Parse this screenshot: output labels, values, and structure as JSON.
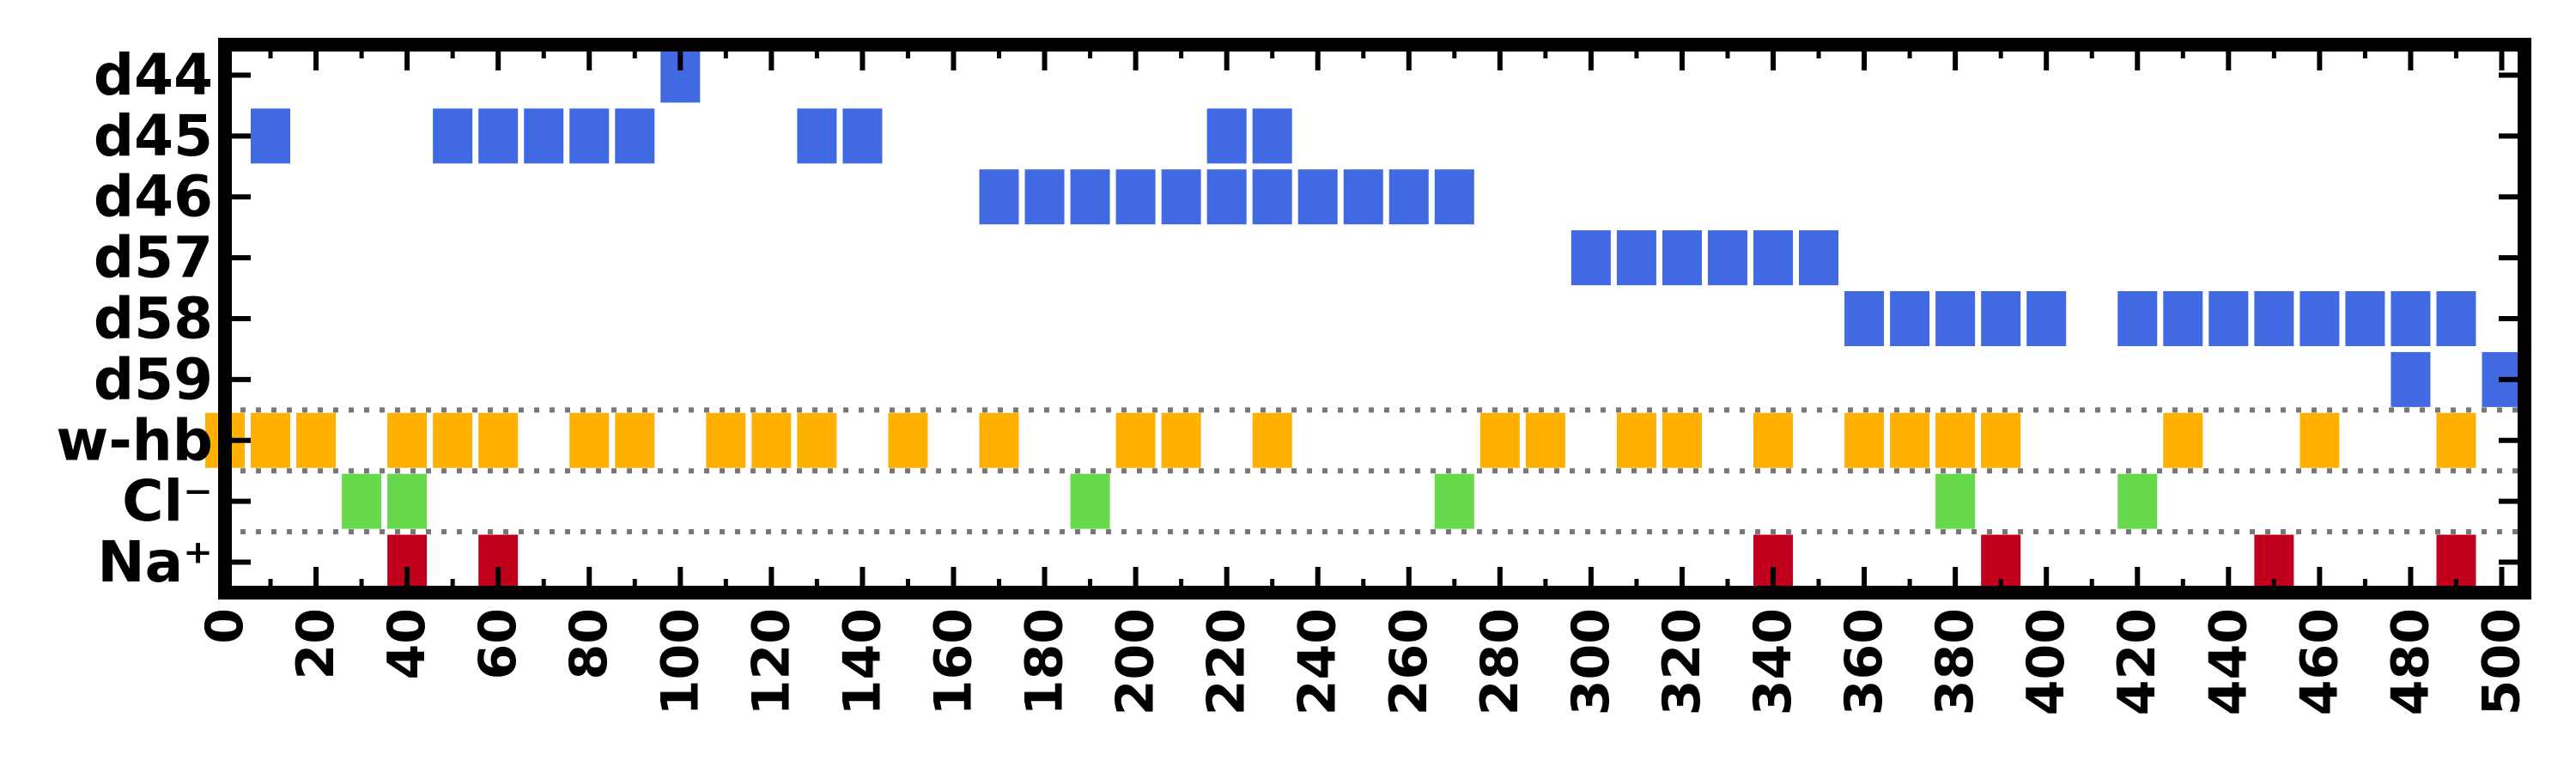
{
  "chart_data": {
    "type": "heatmap",
    "title": "",
    "xlabel": "",
    "ylabel": "",
    "xlim": [
      0,
      505
    ],
    "x_ticks": [
      0,
      20,
      40,
      60,
      80,
      100,
      120,
      140,
      160,
      180,
      200,
      220,
      240,
      260,
      280,
      300,
      320,
      340,
      360,
      380,
      400,
      420,
      440,
      460,
      480,
      500
    ],
    "x_minor_ticks": [
      10,
      30,
      50,
      70,
      90,
      110,
      130,
      150,
      170,
      190,
      210,
      230,
      250,
      270,
      290,
      310,
      330,
      350,
      370,
      390,
      410,
      430,
      450,
      470,
      490
    ],
    "rows": [
      "d44",
      "d45",
      "d46",
      "d57",
      "d58",
      "d59",
      "w-hb",
      "Cl⁻",
      "Na⁺"
    ],
    "separators_after_row": [
      "d59",
      "w-hb",
      "Cl⁻"
    ],
    "series": [
      {
        "row": "d44",
        "color": "#4169e1",
        "x": [
          100
        ]
      },
      {
        "row": "d45",
        "color": "#4169e1",
        "x": [
          10,
          50,
          60,
          70,
          80,
          90,
          130,
          140,
          220,
          230
        ]
      },
      {
        "row": "d46",
        "color": "#4169e1",
        "x": [
          170,
          180,
          190,
          200,
          210,
          220,
          230,
          240,
          250,
          260,
          270
        ]
      },
      {
        "row": "d57",
        "color": "#4169e1",
        "x": [
          300,
          310,
          320,
          330,
          340,
          350
        ]
      },
      {
        "row": "d58",
        "color": "#4169e1",
        "x": [
          360,
          370,
          380,
          390,
          400,
          420,
          430,
          440,
          450,
          460,
          470,
          480,
          490
        ]
      },
      {
        "row": "d59",
        "color": "#4169e1",
        "x": [
          480,
          500
        ]
      },
      {
        "row": "w-hb",
        "color": "#ffb000",
        "x": [
          0,
          10,
          20,
          40,
          50,
          60,
          80,
          90,
          110,
          120,
          130,
          150,
          170,
          200,
          210,
          230,
          280,
          290,
          310,
          320,
          340,
          360,
          370,
          380,
          390,
          430,
          460,
          490
        ]
      },
      {
        "row": "Cl⁻",
        "color": "#66d94c",
        "x": [
          30,
          40,
          190,
          270,
          380,
          420
        ]
      },
      {
        "row": "Na⁺",
        "color": "#c0001c",
        "x": [
          40,
          60,
          340,
          390,
          450,
          490
        ]
      }
    ],
    "grid": false,
    "legend": "none"
  }
}
